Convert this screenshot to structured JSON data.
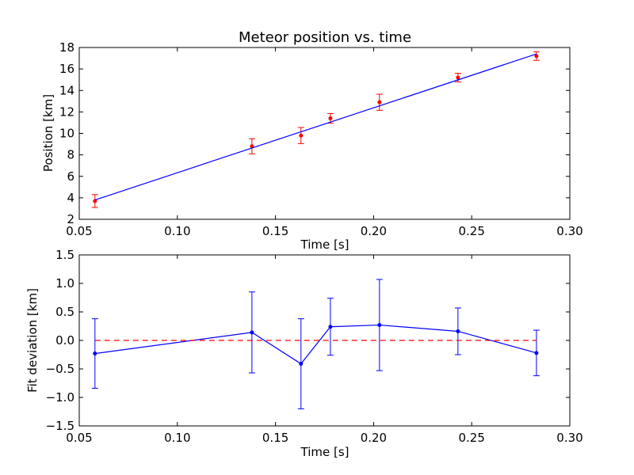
{
  "chart_data": [
    {
      "type": "scatter",
      "title": "Meteor position vs. time",
      "xlabel": "Time [s]",
      "ylabel": "Position [km]",
      "xlim": [
        0.05,
        0.3
      ],
      "ylim": [
        2,
        18
      ],
      "x_ticks": [
        0.05,
        0.1,
        0.15,
        0.2,
        0.25,
        0.3
      ],
      "x_tick_labels": [
        "0.05",
        "0.10",
        "0.15",
        "0.20",
        "0.25",
        "0.30"
      ],
      "y_ticks": [
        2,
        4,
        6,
        8,
        10,
        12,
        14,
        16,
        18
      ],
      "y_tick_labels": [
        "2",
        "4",
        "6",
        "8",
        "10",
        "12",
        "14",
        "16",
        "18"
      ],
      "series": [
        {
          "kind": "errorbar-points",
          "color": "#ff0000",
          "x": [
            0.058,
            0.138,
            0.163,
            0.178,
            0.203,
            0.243,
            0.283
          ],
          "y": [
            3.7,
            8.8,
            9.8,
            11.4,
            12.9,
            15.2,
            17.2
          ],
          "yerr": [
            0.6,
            0.7,
            0.75,
            0.45,
            0.75,
            0.4,
            0.4
          ]
        },
        {
          "kind": "fit-line",
          "color": "#0000ff",
          "x": [
            0.058,
            0.283
          ],
          "y": [
            3.8,
            17.4
          ]
        }
      ],
      "grid": false
    },
    {
      "type": "line",
      "title": "",
      "xlabel": "Time [s]",
      "ylabel": "Fit deviation [km]",
      "xlim": [
        0.05,
        0.3
      ],
      "ylim": [
        -1.5,
        1.5
      ],
      "x_ticks": [
        0.05,
        0.1,
        0.15,
        0.2,
        0.25,
        0.3
      ],
      "x_tick_labels": [
        "0.05",
        "0.10",
        "0.15",
        "0.20",
        "0.25",
        "0.30"
      ],
      "y_ticks": [
        -1.5,
        -1.0,
        -0.5,
        0.0,
        0.5,
        1.0,
        1.5
      ],
      "y_tick_labels": [
        "−1.5",
        "−1.0",
        "−0.5",
        "0.0",
        "0.5",
        "1.0",
        "1.5"
      ],
      "series": [
        {
          "kind": "errorbar-line",
          "color": "#0000ff",
          "x": [
            0.058,
            0.138,
            0.163,
            0.178,
            0.203,
            0.243,
            0.283
          ],
          "y": [
            -0.23,
            0.14,
            -0.41,
            0.24,
            0.27,
            0.16,
            -0.22
          ],
          "yerr": [
            0.61,
            0.71,
            0.79,
            0.5,
            0.8,
            0.41,
            0.4
          ]
        },
        {
          "kind": "reference-line",
          "color": "#ff0000",
          "style": "dashed",
          "x": [
            0.058,
            0.283
          ],
          "y": [
            0,
            0
          ]
        }
      ],
      "grid": false
    }
  ]
}
